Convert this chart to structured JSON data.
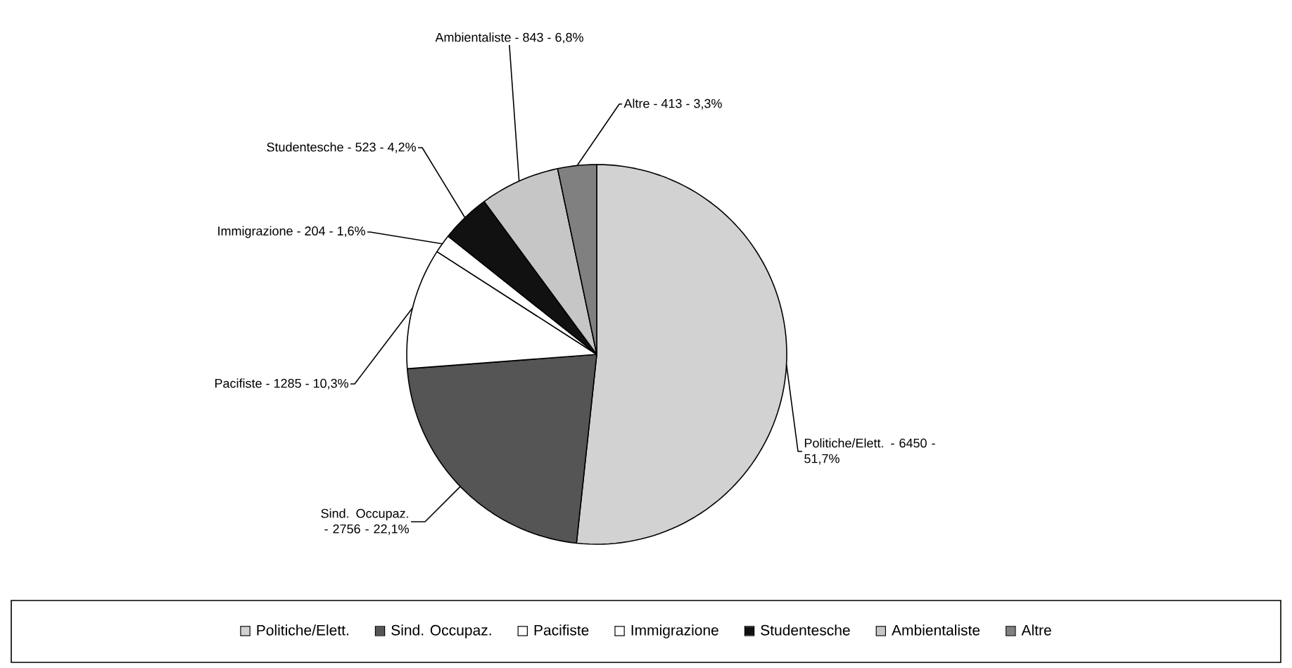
{
  "chart_data": {
    "type": "pie",
    "categories": [
      "Politiche/Elett.",
      "Sind. Occupaz.",
      "Pacifiste",
      "Immigrazione",
      "Studentesche",
      "Ambientaliste",
      "Altre"
    ],
    "values": [
      51.7,
      22.1,
      10.3,
      1.6,
      4.2,
      6.8,
      3.3
    ],
    "annotations": [
      "Politiche/Elett. - 6450 - 51,7%",
      "Sind. Occupaz. - 2756 - 22,1%",
      "Pacifiste - 1285 - 10,3%",
      "Immigrazione - 204 - 1,6%",
      "Studentesche - 523 - 4,2%",
      "Ambientaliste - 843 - 6,8%",
      "Altre - 413 - 3,3%"
    ],
    "colors": [
      "#d2d2d2",
      "#555555",
      "#ffffff",
      "#ffffff",
      "#111111",
      "#c6c6c6",
      "#808080"
    ],
    "legend": "bottom"
  }
}
